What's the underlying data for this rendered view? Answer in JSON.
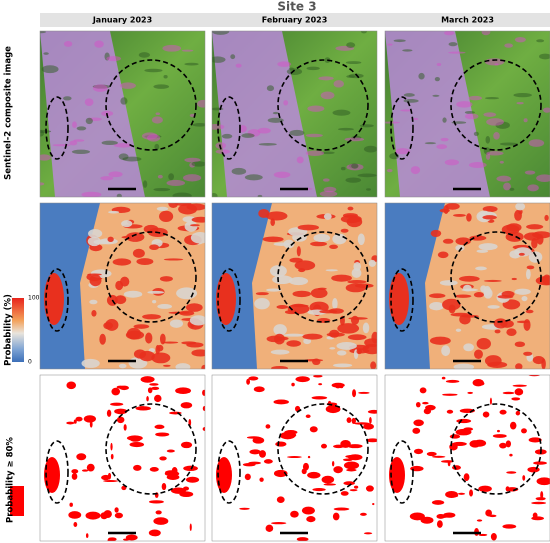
{
  "title": "Site 3",
  "columns": [
    "January  2023",
    "February  2023",
    "March  2023"
  ],
  "rows": [
    {
      "label": "Sentinel-2  composite image"
    },
    {
      "label": "Probability (%)"
    },
    {
      "label": "Probability ≥ 80%"
    }
  ],
  "colorbar": {
    "max": 100,
    "min": 0
  }
}
